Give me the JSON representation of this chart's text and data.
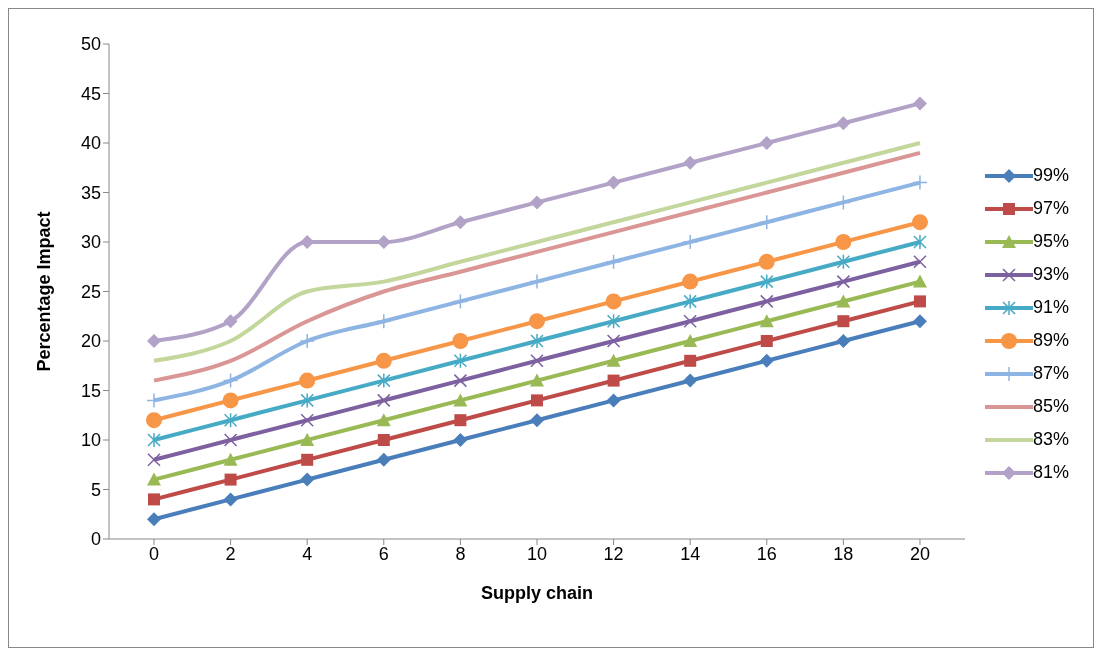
{
  "chart_data": {
    "type": "line",
    "xlabel": "Supply chain",
    "ylabel": "Percentage Impact",
    "categories": [
      "0",
      "2",
      "4",
      "6",
      "8",
      "10",
      "12",
      "14",
      "16",
      "18",
      "20"
    ],
    "ylim": [
      0,
      50
    ],
    "yticks": [
      0,
      5,
      10,
      15,
      20,
      25,
      30,
      35,
      40,
      45,
      50
    ],
    "grid": false,
    "legend": "right",
    "line_style": "solid",
    "series": [
      {
        "name": "99%",
        "color": "#4a7ebb",
        "marker": "diamond",
        "values": [
          2,
          4,
          6,
          8,
          10,
          12,
          14,
          16,
          18,
          20,
          22
        ]
      },
      {
        "name": "97%",
        "color": "#be4b48",
        "marker": "square",
        "values": [
          4,
          6,
          8,
          10,
          12,
          14,
          16,
          18,
          20,
          22,
          24
        ]
      },
      {
        "name": "95%",
        "color": "#98b954",
        "marker": "triangle",
        "values": [
          6,
          8,
          10,
          12,
          14,
          16,
          18,
          20,
          22,
          24,
          26
        ]
      },
      {
        "name": "93%",
        "color": "#7d60a0",
        "marker": "cross",
        "values": [
          8,
          10,
          12,
          14,
          16,
          18,
          20,
          22,
          24,
          26,
          28
        ]
      },
      {
        "name": "91%",
        "color": "#46aac5",
        "marker": "cross",
        "values": [
          10,
          12,
          14,
          16,
          18,
          20,
          22,
          24,
          26,
          28,
          30
        ]
      },
      {
        "name": "89%",
        "color": "#f79646",
        "marker": "circle",
        "values": [
          12,
          14,
          16,
          18,
          20,
          22,
          24,
          26,
          28,
          30,
          32
        ]
      },
      {
        "name": "87%",
        "color": "#8eb4e3",
        "marker": "cross",
        "values": [
          14,
          16,
          20,
          22,
          24,
          26,
          28,
          30,
          32,
          34,
          36
        ]
      },
      {
        "name": "85%",
        "color": "#d99694",
        "marker": "none",
        "values": [
          16,
          18,
          22,
          25,
          27,
          29,
          31,
          33,
          35,
          37,
          39
        ]
      },
      {
        "name": "83%",
        "color": "#c3d69b",
        "marker": "none",
        "values": [
          18,
          20,
          25,
          26,
          28,
          30,
          32,
          34,
          36,
          38,
          40
        ]
      },
      {
        "name": "81%",
        "color": "#b3a2c7",
        "marker": "diamond",
        "values": [
          20,
          22,
          30,
          30,
          32,
          34,
          36,
          38,
          40,
          42,
          44
        ]
      }
    ]
  }
}
